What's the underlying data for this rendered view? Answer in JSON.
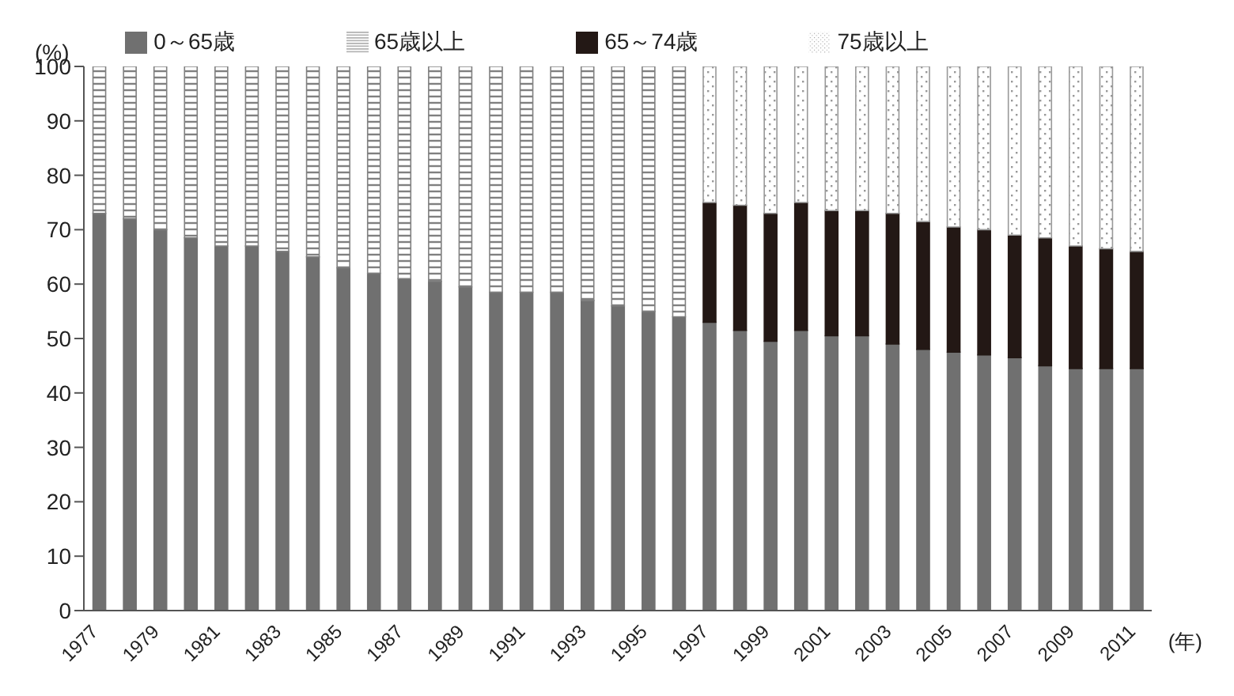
{
  "chart_data": {
    "type": "bar",
    "stacked": true,
    "ylabel": "(%)",
    "xlabel": "(年)",
    "categories": [
      "1977",
      null,
      "1979",
      null,
      "1981",
      null,
      "1983",
      null,
      "1985",
      null,
      "1987",
      null,
      "1989",
      null,
      "1991",
      null,
      "1993",
      null,
      "1995",
      null,
      "1997",
      null,
      "1999",
      null,
      "2001",
      null,
      "2003",
      null,
      "2005",
      null,
      "2007",
      null,
      "2009",
      null,
      "2011"
    ],
    "series": [
      {
        "name": "0～65歳",
        "color": "#707070",
        "values": [
          73,
          72,
          70,
          68.5,
          67,
          67,
          66,
          65,
          63,
          62,
          61,
          60.5,
          59.5,
          58.5,
          58.5,
          58.5,
          57,
          56,
          55,
          54,
          53,
          51.5,
          49.5,
          51.5,
          50.5,
          50.5,
          49,
          48,
          47.5,
          47,
          46.5,
          45,
          44.5,
          44.5,
          44.5
        ]
      },
      {
        "name": "65歳以上",
        "color": "#808080",
        "values": [
          27,
          28,
          30,
          31.5,
          33,
          33,
          34,
          35,
          37,
          38,
          39,
          39.5,
          40.5,
          41.5,
          41.5,
          41.5,
          43,
          44,
          45,
          46,
          null,
          null,
          null,
          null,
          null,
          null,
          null,
          null,
          null,
          null,
          null,
          null,
          null,
          null,
          null
        ]
      },
      {
        "name": "65～74歳",
        "color": "#231815",
        "values": [
          null,
          null,
          null,
          null,
          null,
          null,
          null,
          null,
          null,
          null,
          null,
          null,
          null,
          null,
          null,
          null,
          null,
          null,
          null,
          null,
          22,
          23,
          23.5,
          23.5,
          23,
          23,
          24,
          23.5,
          23,
          23,
          22.5,
          23.5,
          22.5,
          22,
          21.5
        ]
      },
      {
        "name": "75歳以上",
        "color": "#999999",
        "values": [
          null,
          null,
          null,
          null,
          null,
          null,
          null,
          null,
          null,
          null,
          null,
          null,
          null,
          null,
          null,
          null,
          null,
          null,
          null,
          null,
          25,
          25.5,
          27,
          25,
          26.5,
          26.5,
          27,
          28.5,
          29.5,
          30,
          31,
          31.5,
          33,
          33.5,
          34
        ]
      }
    ],
    "ylim": [
      0,
      100
    ],
    "yticks": [
      0,
      10,
      20,
      30,
      40,
      50,
      60,
      70,
      80,
      90,
      100
    ],
    "legend": "top"
  }
}
